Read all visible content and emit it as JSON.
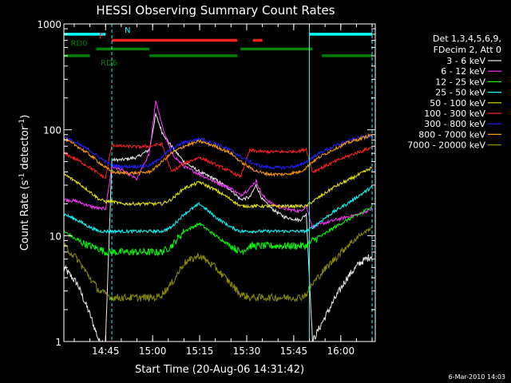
{
  "chart_data": {
    "type": "line",
    "title": "HESSI Observing Summary Count Rates",
    "xlabel": "Start Time (20-Aug-06 14:31:42)",
    "ylabel_main": "Count Rate (s",
    "ylabel_sup1": "-1",
    "ylabel_mid": " detector",
    "ylabel_sup2": "-1",
    "ylabel_end": ")",
    "date_stamp": "6-Mar-2010 14:03",
    "xlim": [
      "14:31:42",
      "16:11:00"
    ],
    "x_ticks": [
      "14:45",
      "15:00",
      "15:15",
      "15:30",
      "15:45",
      "16:00"
    ],
    "yscale": "log",
    "ylim": [
      1,
      1000
    ],
    "y_ticks": [
      "1",
      "10",
      "100",
      "1000"
    ],
    "legend_header": [
      "Det 1,3,4,5,6,9,",
      "FDecim 2, Att 0"
    ],
    "legend_placement": "right",
    "series": [
      {
        "name": "3 - 6 keV",
        "color": "#e8e8e8",
        "x": [
          "14:31:42",
          "14:36",
          "14:40",
          "14:43",
          "14:45",
          "14:47",
          "14:50",
          "14:55",
          "14:59",
          "15:01",
          "15:03",
          "15:06",
          "15:10",
          "15:15",
          "15:20",
          "15:25",
          "15:28",
          "15:31",
          "15:33",
          "15:35",
          "15:38",
          "15:42",
          "15:47",
          "15:49",
          "15:51",
          "15:54",
          "15:58",
          "16:02",
          "16:06",
          "16:10"
        ],
        "y": [
          5,
          3.5,
          1.8,
          1,
          1,
          52,
          52,
          55,
          65,
          140,
          95,
          70,
          50,
          40,
          34,
          27,
          22,
          23,
          30,
          22,
          18,
          15,
          14,
          16,
          1,
          1.5,
          2.5,
          4,
          5.5,
          6.5
        ]
      },
      {
        "name": "6 - 12 keV",
        "color": "#ff33ff",
        "x": [
          "14:31:42",
          "14:36",
          "14:40",
          "14:43",
          "14:45",
          "14:47",
          "14:50",
          "14:55",
          "14:59",
          "15:01",
          "15:03",
          "15:06",
          "15:10",
          "15:15",
          "15:20",
          "15:25",
          "15:28",
          "15:31",
          "15:33",
          "15:35",
          "15:38",
          "15:42",
          "15:47",
          "15:49",
          "15:51",
          "15:54",
          "15:58",
          "16:02",
          "16:06",
          "16:10"
        ],
        "y": [
          22,
          21,
          19,
          18,
          18,
          45,
          42,
          34,
          60,
          190,
          110,
          60,
          45,
          38,
          32,
          28,
          24,
          28,
          33,
          24,
          20,
          18,
          17,
          19,
          12,
          13,
          14,
          15,
          16,
          18
        ]
      },
      {
        "name": "12 - 25 keV",
        "color": "#00ff00",
        "x": [
          "14:31:42",
          "14:36",
          "14:40",
          "14:43",
          "14:45",
          "14:47",
          "14:50",
          "14:55",
          "14:59",
          "15:01",
          "15:03",
          "15:06",
          "15:10",
          "15:15",
          "15:20",
          "15:25",
          "15:28",
          "15:31",
          "15:33",
          "15:35",
          "15:38",
          "15:42",
          "15:47",
          "15:49",
          "15:51",
          "15:54",
          "15:58",
          "16:02",
          "16:06",
          "16:10"
        ],
        "y": [
          11,
          9,
          8,
          7.5,
          7,
          7,
          7,
          7,
          7,
          7,
          7,
          8,
          11,
          13,
          10,
          8,
          7,
          8,
          8,
          8,
          8,
          8,
          8,
          8,
          9,
          10,
          12,
          14,
          16,
          19
        ]
      },
      {
        "name": "25 - 50 keV",
        "color": "#00ffff",
        "x": [
          "14:31:42",
          "14:36",
          "14:40",
          "14:43",
          "14:45",
          "14:47",
          "14:50",
          "14:55",
          "14:59",
          "15:01",
          "15:03",
          "15:06",
          "15:10",
          "15:15",
          "15:20",
          "15:25",
          "15:28",
          "15:31",
          "15:33",
          "15:35",
          "15:38",
          "15:42",
          "15:47",
          "15:49",
          "15:51",
          "15:54",
          "15:58",
          "16:02",
          "16:06",
          "16:10"
        ],
        "y": [
          16,
          14,
          12,
          11,
          11,
          11,
          11,
          11,
          11,
          11,
          11,
          12,
          16,
          20,
          15,
          12,
          11,
          11,
          11,
          11,
          11,
          11,
          11,
          11,
          12,
          14,
          17,
          20,
          24,
          29
        ]
      },
      {
        "name": "50 - 100 keV",
        "color": "#e6e600",
        "x": [
          "14:31:42",
          "14:36",
          "14:40",
          "14:43",
          "14:45",
          "14:47",
          "14:50",
          "14:55",
          "14:59",
          "15:01",
          "15:03",
          "15:06",
          "15:10",
          "15:15",
          "15:20",
          "15:25",
          "15:28",
          "15:31",
          "15:33",
          "15:35",
          "15:38",
          "15:42",
          "15:47",
          "15:49",
          "15:51",
          "15:54",
          "15:58",
          "16:02",
          "16:06",
          "16:10"
        ],
        "y": [
          38,
          32,
          26,
          22,
          21,
          21,
          20,
          20,
          20,
          20,
          20,
          22,
          28,
          32,
          27,
          22,
          19,
          19,
          19,
          19,
          19,
          19,
          19,
          19,
          21,
          24,
          29,
          33,
          38,
          44
        ]
      },
      {
        "name": "100 - 300 keV",
        "color": "#ff2020",
        "x": [
          "14:31:42",
          "14:36",
          "14:40",
          "14:43",
          "14:45",
          "14:47",
          "14:50",
          "14:55",
          "14:59",
          "15:01",
          "15:03",
          "15:06",
          "15:10",
          "15:15",
          "15:20",
          "15:25",
          "15:28",
          "15:31",
          "15:33",
          "15:35",
          "15:38",
          "15:42",
          "15:47",
          "15:49",
          "15:51",
          "15:54",
          "15:58",
          "16:02",
          "16:06",
          "16:10"
        ],
        "y": [
          60,
          52,
          44,
          38,
          35,
          72,
          70,
          69,
          70,
          72,
          73,
          40,
          48,
          55,
          47,
          40,
          36,
          64,
          63,
          62,
          62,
          62,
          63,
          66,
          40,
          44,
          50,
          56,
          62,
          68
        ]
      },
      {
        "name": "300 - 800 keV",
        "color": "#2020ff",
        "x": [
          "14:31:42",
          "14:36",
          "14:40",
          "14:43",
          "14:45",
          "14:47",
          "14:50",
          "14:55",
          "14:59",
          "15:01",
          "15:03",
          "15:06",
          "15:10",
          "15:15",
          "15:20",
          "15:25",
          "15:28",
          "15:31",
          "15:33",
          "15:35",
          "15:38",
          "15:42",
          "15:47",
          "15:49",
          "15:51",
          "15:54",
          "15:58",
          "16:02",
          "16:06",
          "16:10"
        ],
        "y": [
          86,
          74,
          64,
          55,
          50,
          46,
          45,
          45,
          46,
          50,
          56,
          66,
          76,
          82,
          74,
          64,
          56,
          50,
          47,
          45,
          44,
          44,
          46,
          50,
          55,
          62,
          70,
          78,
          84,
          88
        ]
      },
      {
        "name": "800 - 7000 keV",
        "color": "#ff9900",
        "x": [
          "14:31:42",
          "14:36",
          "14:40",
          "14:43",
          "14:45",
          "14:47",
          "14:50",
          "14:55",
          "14:59",
          "15:01",
          "15:03",
          "15:06",
          "15:10",
          "15:15",
          "15:20",
          "15:25",
          "15:28",
          "15:31",
          "15:33",
          "15:35",
          "15:38",
          "15:42",
          "15:47",
          "15:49",
          "15:51",
          "15:54",
          "15:58",
          "16:02",
          "16:06",
          "16:10"
        ],
        "y": [
          82,
          70,
          58,
          49,
          44,
          40,
          39,
          39,
          40,
          44,
          50,
          60,
          70,
          78,
          70,
          60,
          50,
          44,
          41,
          39,
          38,
          38,
          40,
          44,
          50,
          57,
          66,
          75,
          82,
          90
        ]
      },
      {
        "name": "7000 - 20000 keV",
        "color": "#8c8c00",
        "x": [
          "14:31:42",
          "14:36",
          "14:40",
          "14:43",
          "14:45",
          "14:47",
          "14:50",
          "14:55",
          "14:59",
          "15:01",
          "15:03",
          "15:06",
          "15:10",
          "15:15",
          "15:20",
          "15:25",
          "15:28",
          "15:31",
          "15:33",
          "15:35",
          "15:38",
          "15:42",
          "15:47",
          "15:49",
          "15:51",
          "15:54",
          "15:58",
          "16:02",
          "16:06",
          "16:10"
        ],
        "y": [
          8,
          6,
          4,
          3,
          2.8,
          2.6,
          2.6,
          2.6,
          2.6,
          2.6,
          2.8,
          3.5,
          5.5,
          6.5,
          5,
          3.5,
          2.8,
          2.6,
          2.6,
          2.6,
          2.6,
          2.6,
          2.6,
          2.8,
          3.5,
          4.5,
          6,
          8,
          10,
          12
        ]
      }
    ],
    "flags": [
      {
        "label": "N",
        "color": "#00ffff",
        "intervals": [
          [
            "14:31:42",
            "14:45"
          ],
          [
            "15:50",
            "16:10"
          ]
        ],
        "value": 800
      },
      {
        "label": "F",
        "color": "#ff2020",
        "intervals": [
          [
            "14:47",
            "15:27"
          ],
          [
            "15:32",
            "15:35"
          ]
        ],
        "value": 700
      },
      {
        "label": "RD0",
        "color": "#008000",
        "intervals": [
          [
            "14:42",
            "14:59"
          ],
          [
            "15:28",
            "15:51"
          ]
        ],
        "value": 580
      },
      {
        "label": "RD6",
        "color": "#008000",
        "intervals": [
          [
            "14:31:42",
            "14:40"
          ],
          [
            "14:59",
            "15:27"
          ],
          [
            "15:54",
            "16:10"
          ]
        ],
        "value": 500
      }
    ],
    "markers": [
      {
        "time": "14:47",
        "color": "#00ffff",
        "style": "dashed"
      },
      {
        "time": "15:50",
        "color": "#00ffff",
        "style": "solid"
      },
      {
        "time": "16:10",
        "color": "#00ffff",
        "style": "dashed"
      }
    ]
  }
}
